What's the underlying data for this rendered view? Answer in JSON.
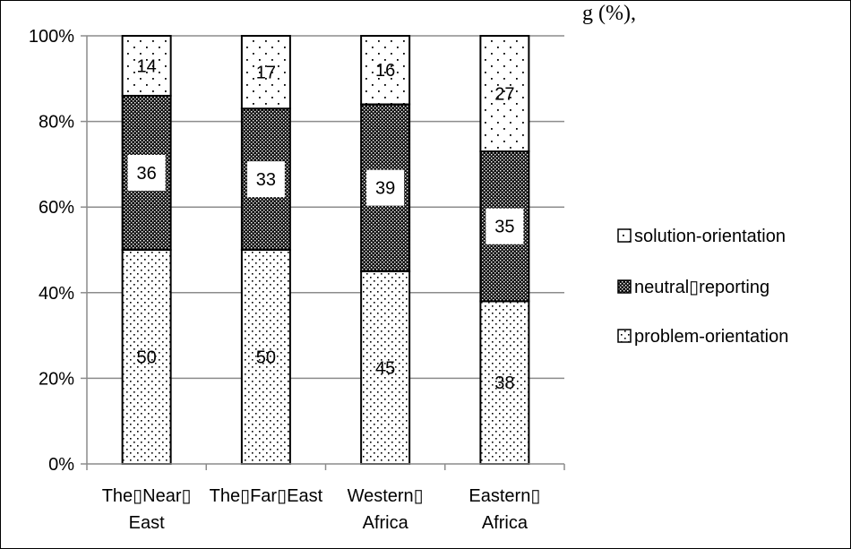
{
  "chart_data": {
    "type": "bar",
    "stacked": true,
    "percent_stacked": true,
    "title_fragment": "g        (%),",
    "categories": [
      "The▯Near▯ East",
      "The▯Far▯East",
      "Western▯ Africa",
      "Eastern▯ Africa"
    ],
    "category_lines": [
      [
        "The▯Near▯",
        "East"
      ],
      [
        "The▯Far▯East",
        ""
      ],
      [
        "Western▯",
        "Africa"
      ],
      [
        "Eastern▯",
        "Africa"
      ]
    ],
    "series": [
      {
        "name": "problem-orientation",
        "values": [
          50,
          50,
          45,
          38
        ],
        "pattern": "light-dots"
      },
      {
        "name": "neutral▯reporting",
        "values": [
          36,
          33,
          39,
          35
        ],
        "pattern": "dark-checker"
      },
      {
        "name": "solution-orientation",
        "values": [
          14,
          17,
          16,
          27
        ],
        "pattern": "sparse-dots"
      }
    ],
    "ylim": [
      0,
      100
    ],
    "y_ticks": [
      "0%",
      "20%",
      "40%",
      "60%",
      "80%",
      "100%"
    ],
    "grid": true,
    "legend_position": "right",
    "legend_order": [
      "solution-orientation",
      "neutral▯reporting",
      "problem-orientation"
    ]
  }
}
